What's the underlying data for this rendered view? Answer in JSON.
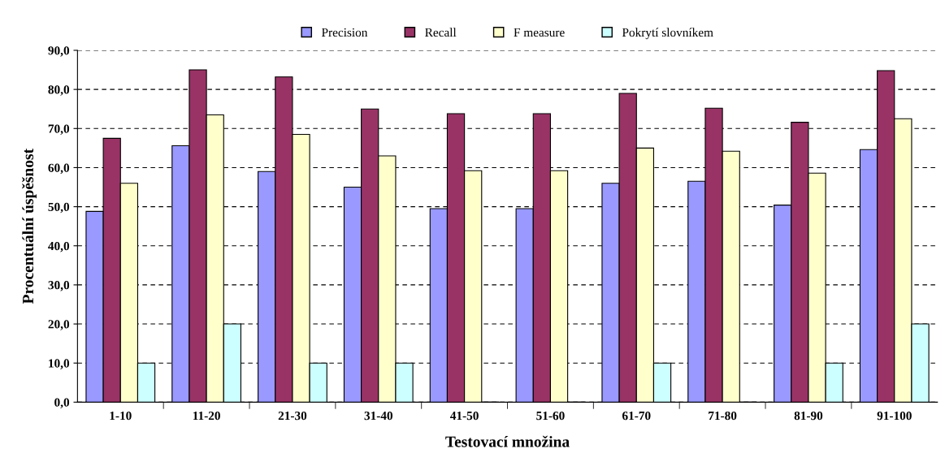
{
  "chart_data": {
    "type": "bar",
    "xlabel": "Testovací množina",
    "ylabel": "Procentuální úspěšnost",
    "categories": [
      "1-10",
      "11-20",
      "21-30",
      "31-40",
      "41-50",
      "51-60",
      "61-70",
      "71-80",
      "81-90",
      "91-100"
    ],
    "series": [
      {
        "name": "Precision",
        "color": "#9999ff",
        "values": [
          48.8,
          65.6,
          59.0,
          55.0,
          49.5,
          49.5,
          56.0,
          56.5,
          50.4,
          64.6
        ]
      },
      {
        "name": "Recall",
        "color": "#993366",
        "values": [
          67.5,
          85.0,
          83.2,
          75.0,
          73.8,
          73.8,
          79.0,
          75.2,
          71.6,
          84.8
        ]
      },
      {
        "name": "F measure",
        "color": "#ffffcc",
        "values": [
          56.0,
          73.5,
          68.5,
          63.0,
          59.2,
          59.2,
          65.0,
          64.2,
          58.6,
          72.5
        ]
      },
      {
        "name": "Pokrytí slovníkem",
        "color": "#ccffff",
        "values": [
          10,
          20,
          10,
          10,
          0,
          0,
          10,
          0,
          10,
          20
        ]
      }
    ],
    "ylim": [
      0,
      90
    ],
    "yticks": [
      {
        "value": 0,
        "label": "0,0"
      },
      {
        "value": 10,
        "label": "10,0"
      },
      {
        "value": 20,
        "label": "20,0"
      },
      {
        "value": 30,
        "label": "30,0"
      },
      {
        "value": 40,
        "label": "40,0"
      },
      {
        "value": 50,
        "label": "50,0"
      },
      {
        "value": 60,
        "label": "60,0"
      },
      {
        "value": 70,
        "label": "70,0"
      },
      {
        "value": 80,
        "label": "80,0"
      },
      {
        "value": 90,
        "label": "90,0"
      }
    ],
    "grid": "y",
    "legend": "top"
  }
}
